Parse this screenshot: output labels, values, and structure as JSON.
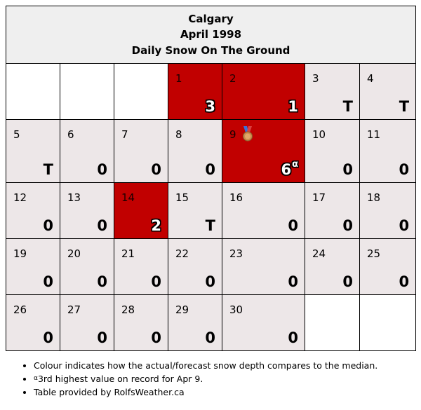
{
  "header": {
    "city": "Calgary",
    "month": "April 1998",
    "subtitle": "Daily Snow On The Ground"
  },
  "colors": {
    "above_median": "#c10000",
    "near_median": "#ede7e8",
    "empty": "#ffffff"
  },
  "weeks": [
    [
      {
        "day": "",
        "value": "",
        "status": "blank"
      },
      {
        "day": "",
        "value": "",
        "status": "blank"
      },
      {
        "day": "",
        "value": "",
        "status": "blank"
      },
      {
        "day": "1",
        "value": "3",
        "status": "above"
      },
      {
        "day": "2",
        "value": "1",
        "status": "above"
      },
      {
        "day": "3",
        "value": "T",
        "status": "normal"
      },
      {
        "day": "4",
        "value": "T",
        "status": "normal"
      }
    ],
    [
      {
        "day": "5",
        "value": "T",
        "status": "normal"
      },
      {
        "day": "6",
        "value": "0",
        "status": "normal"
      },
      {
        "day": "7",
        "value": "0",
        "status": "normal"
      },
      {
        "day": "8",
        "value": "0",
        "status": "normal"
      },
      {
        "day": "9",
        "value": "6",
        "sup": "α",
        "medal": "bronze-medal-icon",
        "status": "above"
      },
      {
        "day": "10",
        "value": "0",
        "status": "normal"
      },
      {
        "day": "11",
        "value": "0",
        "status": "normal"
      }
    ],
    [
      {
        "day": "12",
        "value": "0",
        "status": "normal"
      },
      {
        "day": "13",
        "value": "0",
        "status": "normal"
      },
      {
        "day": "14",
        "value": "2",
        "status": "above"
      },
      {
        "day": "15",
        "value": "T",
        "status": "normal"
      },
      {
        "day": "16",
        "value": "0",
        "status": "normal"
      },
      {
        "day": "17",
        "value": "0",
        "status": "normal"
      },
      {
        "day": "18",
        "value": "0",
        "status": "normal"
      }
    ],
    [
      {
        "day": "19",
        "value": "0",
        "status": "normal"
      },
      {
        "day": "20",
        "value": "0",
        "status": "normal"
      },
      {
        "day": "21",
        "value": "0",
        "status": "normal"
      },
      {
        "day": "22",
        "value": "0",
        "status": "normal"
      },
      {
        "day": "23",
        "value": "0",
        "status": "normal"
      },
      {
        "day": "24",
        "value": "0",
        "status": "normal"
      },
      {
        "day": "25",
        "value": "0",
        "status": "normal"
      }
    ],
    [
      {
        "day": "26",
        "value": "0",
        "status": "normal"
      },
      {
        "day": "27",
        "value": "0",
        "status": "normal"
      },
      {
        "day": "28",
        "value": "0",
        "status": "normal"
      },
      {
        "day": "29",
        "value": "0",
        "status": "normal"
      },
      {
        "day": "30",
        "value": "0",
        "status": "normal"
      },
      {
        "day": "",
        "value": "",
        "status": "blank"
      },
      {
        "day": "",
        "value": "",
        "status": "blank"
      }
    ]
  ],
  "notes": {
    "colour": "Colour indicates how the actual/forecast snow depth compares to the median.",
    "record_marker": "α",
    "record_text": "3rd highest value on record for Apr 9.",
    "credit": "Table provided by RolfsWeather.ca"
  }
}
